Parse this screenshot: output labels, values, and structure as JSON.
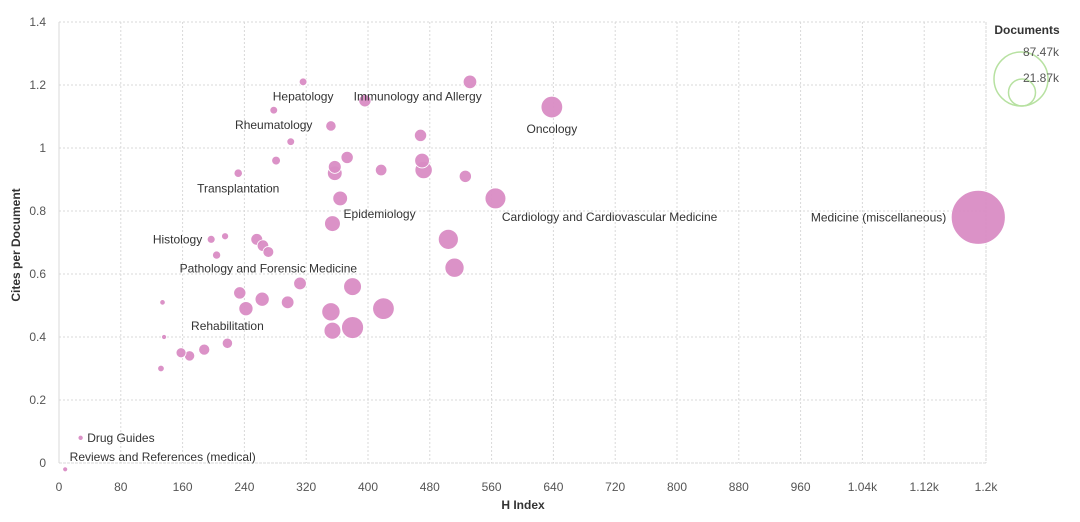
{
  "chart_data": {
    "type": "scatter",
    "title": "",
    "xlabel": "H Index",
    "ylabel": "Cites per Document",
    "xlim": [
      0,
      1200
    ],
    "ylim": [
      0,
      1.4
    ],
    "x_ticks": [
      0,
      80,
      160,
      240,
      320,
      400,
      480,
      560,
      640,
      720,
      800,
      880,
      960,
      1040,
      1120,
      1200
    ],
    "x_tick_labels": [
      "0",
      "80",
      "160",
      "240",
      "320",
      "400",
      "480",
      "560",
      "640",
      "720",
      "800",
      "880",
      "960",
      "1.04k",
      "1.12k",
      "1.2k"
    ],
    "y_ticks": [
      0,
      0.2,
      0.4,
      0.6,
      0.8,
      1,
      1.2,
      1.4
    ],
    "y_tick_labels": [
      "0",
      "0.2",
      "0.4",
      "0.6",
      "0.8",
      "1",
      "1.2",
      "1.4"
    ],
    "grid": true,
    "bubble_color": "#d98cc4",
    "legend_color": "#b7e1a1",
    "legend": {
      "title": "Documents",
      "placement": "top-right",
      "entries": [
        {
          "label": "87.47k",
          "documents": 87470
        },
        {
          "label": "21.87k",
          "documents": 21870
        }
      ]
    },
    "series": [
      {
        "name": "Medicine (miscellaneous)",
        "x": 1190,
        "y": 0.78,
        "documents": 87470,
        "label": "Medicine (miscellaneous)",
        "label_side": "left"
      },
      {
        "name": "Oncology",
        "x": 638,
        "y": 1.13,
        "documents": 14000,
        "label": "Oncology",
        "label_side": "below"
      },
      {
        "name": "Cardiology and Cardiovascular Medicine",
        "x": 565,
        "y": 0.84,
        "documents": 13000,
        "label": "Cardiology and Cardiovascular Medicine",
        "label_side": "below-right"
      },
      {
        "name": "Immunology and Allergy",
        "x": 532,
        "y": 1.21,
        "documents": 5500,
        "label": "Immunology and Allergy",
        "label_side": "below-left"
      },
      {
        "name": "Hepatology",
        "x": 316,
        "y": 1.21,
        "documents": 1800,
        "label": "Hepatology",
        "label_side": "below"
      },
      {
        "name": "Rheumatology",
        "x": 278,
        "y": 1.12,
        "documents": 1800,
        "label": "Rheumatology",
        "label_side": "below"
      },
      {
        "name": "Transplantation",
        "x": 232,
        "y": 0.92,
        "documents": 2100,
        "label": "Transplantation",
        "label_side": "below"
      },
      {
        "name": "Epidemiology",
        "x": 364,
        "y": 0.84,
        "documents": 6500,
        "label": "Epidemiology",
        "label_side": "below-right"
      },
      {
        "name": "Histology",
        "x": 197,
        "y": 0.71,
        "documents": 1900,
        "label": "Histology",
        "label_side": "left"
      },
      {
        "name": "Pathology and Forensic Medicine",
        "x": 271,
        "y": 0.67,
        "documents": 3500,
        "label": "Pathology and Forensic Medicine",
        "label_side": "below"
      },
      {
        "name": "Rehabilitation",
        "x": 218,
        "y": 0.38,
        "documents": 3200,
        "label": "Rehabilitation",
        "label_side": "above"
      },
      {
        "name": "Drug Guides",
        "x": 28,
        "y": 0.08,
        "documents": 800,
        "label": "Drug Guides",
        "label_side": "right"
      },
      {
        "name": "Reviews and References (medical)",
        "x": 8,
        "y": -0.02,
        "documents": 600,
        "label": "Reviews and References (medical)",
        "label_side": "above-right"
      },
      {
        "name": "",
        "x": 396,
        "y": 1.15,
        "documents": 4500
      },
      {
        "name": "",
        "x": 352,
        "y": 1.07,
        "documents": 3200
      },
      {
        "name": "",
        "x": 300,
        "y": 1.02,
        "documents": 1800
      },
      {
        "name": "",
        "x": 281,
        "y": 0.96,
        "documents": 2300
      },
      {
        "name": "",
        "x": 373,
        "y": 0.97,
        "documents": 4500
      },
      {
        "name": "",
        "x": 357,
        "y": 0.94,
        "documents": 5000
      },
      {
        "name": "",
        "x": 357,
        "y": 0.92,
        "documents": 6500
      },
      {
        "name": "",
        "x": 417,
        "y": 0.93,
        "documents": 4000
      },
      {
        "name": "",
        "x": 468,
        "y": 1.04,
        "documents": 4500
      },
      {
        "name": "",
        "x": 470,
        "y": 0.96,
        "documents": 6500
      },
      {
        "name": "",
        "x": 472,
        "y": 0.93,
        "documents": 9000
      },
      {
        "name": "",
        "x": 526,
        "y": 0.91,
        "documents": 4500
      },
      {
        "name": "",
        "x": 354,
        "y": 0.76,
        "documents": 7500
      },
      {
        "name": "",
        "x": 504,
        "y": 0.71,
        "documents": 12000
      },
      {
        "name": "",
        "x": 512,
        "y": 0.62,
        "documents": 11000
      },
      {
        "name": "",
        "x": 215,
        "y": 0.72,
        "documents": 1500
      },
      {
        "name": "",
        "x": 204,
        "y": 0.66,
        "documents": 2000
      },
      {
        "name": "",
        "x": 256,
        "y": 0.71,
        "documents": 4200
      },
      {
        "name": "",
        "x": 264,
        "y": 0.69,
        "documents": 4000
      },
      {
        "name": "",
        "x": 312,
        "y": 0.57,
        "documents": 4800
      },
      {
        "name": "",
        "x": 380,
        "y": 0.56,
        "documents": 9500
      },
      {
        "name": "",
        "x": 352,
        "y": 0.48,
        "documents": 10000
      },
      {
        "name": "",
        "x": 420,
        "y": 0.49,
        "documents": 14000
      },
      {
        "name": "",
        "x": 354,
        "y": 0.42,
        "documents": 8500
      },
      {
        "name": "",
        "x": 380,
        "y": 0.43,
        "documents": 14500
      },
      {
        "name": "",
        "x": 234,
        "y": 0.54,
        "documents": 4500
      },
      {
        "name": "",
        "x": 242,
        "y": 0.49,
        "documents": 6000
      },
      {
        "name": "",
        "x": 263,
        "y": 0.52,
        "documents": 6000
      },
      {
        "name": "",
        "x": 296,
        "y": 0.51,
        "documents": 4800
      },
      {
        "name": "",
        "x": 134,
        "y": 0.51,
        "documents": 900
      },
      {
        "name": "",
        "x": 136,
        "y": 0.4,
        "documents": 600
      },
      {
        "name": "",
        "x": 158,
        "y": 0.35,
        "documents": 3000
      },
      {
        "name": "",
        "x": 169,
        "y": 0.34,
        "documents": 3200
      },
      {
        "name": "",
        "x": 188,
        "y": 0.36,
        "documents": 3700
      },
      {
        "name": "",
        "x": 132,
        "y": 0.3,
        "documents": 1300
      }
    ]
  }
}
